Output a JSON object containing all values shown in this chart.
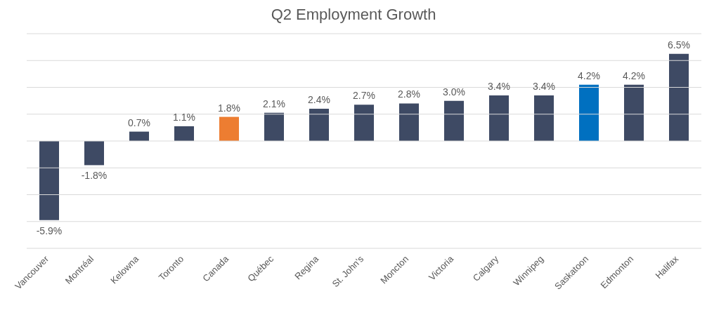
{
  "chart_data": {
    "type": "bar",
    "title": "Q2 Employment Growth",
    "categories": [
      "Vancouver",
      "Montréal",
      "Kelowna",
      "Toronto",
      "Canada",
      "Québec",
      "Regina",
      "St. John's",
      "Moncton",
      "Victoria",
      "Calgary",
      "Winnipeg",
      "Saskatoon",
      "Edmonton",
      "Halifax"
    ],
    "values": [
      -5.9,
      -1.8,
      0.7,
      1.1,
      1.8,
      2.1,
      2.4,
      2.7,
      2.8,
      3.0,
      3.4,
      3.4,
      4.2,
      4.2,
      6.5
    ],
    "value_labels": [
      "-5.9%",
      "-1.8%",
      "0.7%",
      "1.1%",
      "1.8%",
      "2.1%",
      "2.4%",
      "2.7%",
      "2.8%",
      "3.0%",
      "3.4%",
      "3.4%",
      "4.2%",
      "4.2%",
      "6.5%"
    ],
    "colors": [
      "#3e4a64",
      "#3e4a64",
      "#3e4a64",
      "#3e4a64",
      "#ed7d31",
      "#3e4a64",
      "#3e4a64",
      "#3e4a64",
      "#3e4a64",
      "#3e4a64",
      "#3e4a64",
      "#3e4a64",
      "#0070c0",
      "#3e4a64",
      "#3e4a64"
    ],
    "ylim": [
      -8,
      8
    ],
    "yticks": [
      {
        "value": -8,
        "label": null
      },
      {
        "value": -6,
        "label": null
      },
      {
        "value": -4,
        "label": null
      },
      {
        "value": -2,
        "label": null
      },
      {
        "value": 0,
        "label": null
      },
      {
        "value": 2,
        "label": null
      },
      {
        "value": 4,
        "label": null
      },
      {
        "value": 6,
        "label": null
      },
      {
        "value": 8,
        "label": null
      }
    ],
    "tick_labels": "x",
    "grid": "y",
    "legend": false
  }
}
